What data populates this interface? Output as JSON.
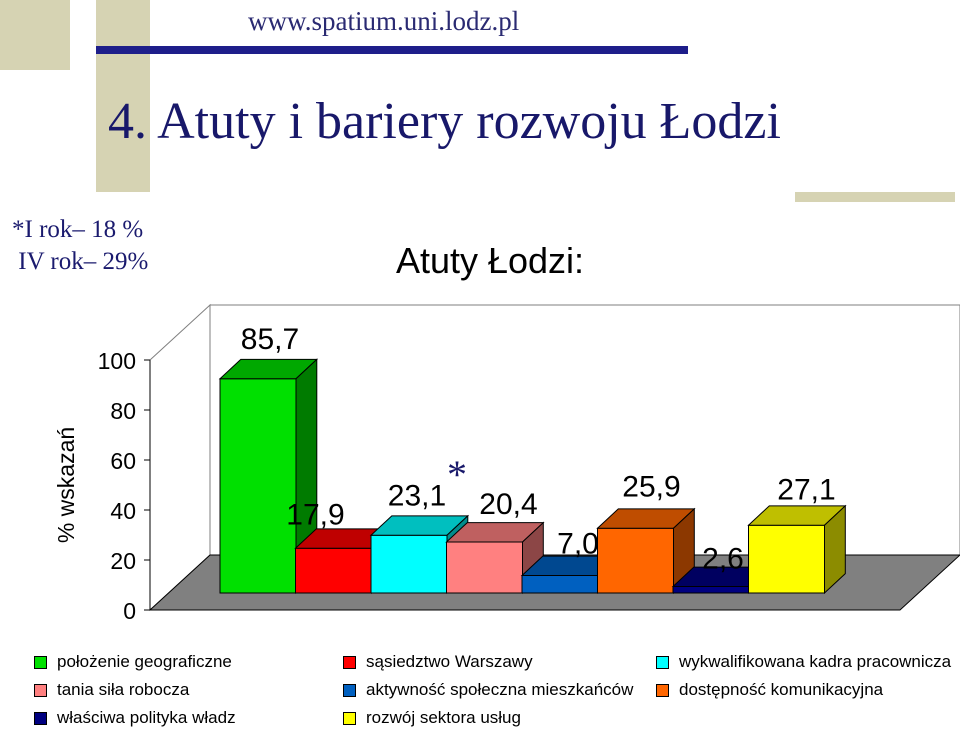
{
  "header": {
    "website": "www.spatium.uni.lodz.pl",
    "title": "4. Atuty i bariery rozwoju Łodzi"
  },
  "survey_note": {
    "line1": "*I rok– 18 %",
    "line2": " IV rok– 29%"
  },
  "colors": {
    "title_text": "#18186a",
    "deco_bar": "#1e1e8a",
    "deco_khaki": "#d6d3b3"
  },
  "chart_data": {
    "type": "bar",
    "title": "Atuty Łodzi:",
    "ylabel": "% wskazań",
    "xlabel": "",
    "ylim": [
      0,
      100
    ],
    "yticks": [
      0,
      20,
      40,
      60,
      80,
      100
    ],
    "grid": false,
    "legend_position": "bottom",
    "annotation": "*",
    "annotated_category": "wykwalifikowana kadra pracownicza",
    "categories": [
      "położenie geograficzne",
      "sąsiedztwo Warszawy",
      "wykwalifikowana kadra pracownicza",
      "tania siła robocza",
      "aktywność społeczna mieszkańców",
      "dostępność komunikacyjna",
      "właściwa polityka władz",
      "rozwój sektora usług"
    ],
    "values": [
      85.7,
      17.9,
      23.1,
      20.4,
      7.0,
      25.9,
      2.6,
      27.1
    ],
    "value_labels": [
      "85,7",
      "17,9",
      "23,1",
      "20,4",
      "7,0",
      "25,9",
      "2,6",
      "27,1"
    ],
    "colors": [
      "#00e000",
      "#ff0000",
      "#00ffff",
      "#ff8080",
      "#0060c0",
      "#ff6600",
      "#000080",
      "#ffff00"
    ]
  }
}
